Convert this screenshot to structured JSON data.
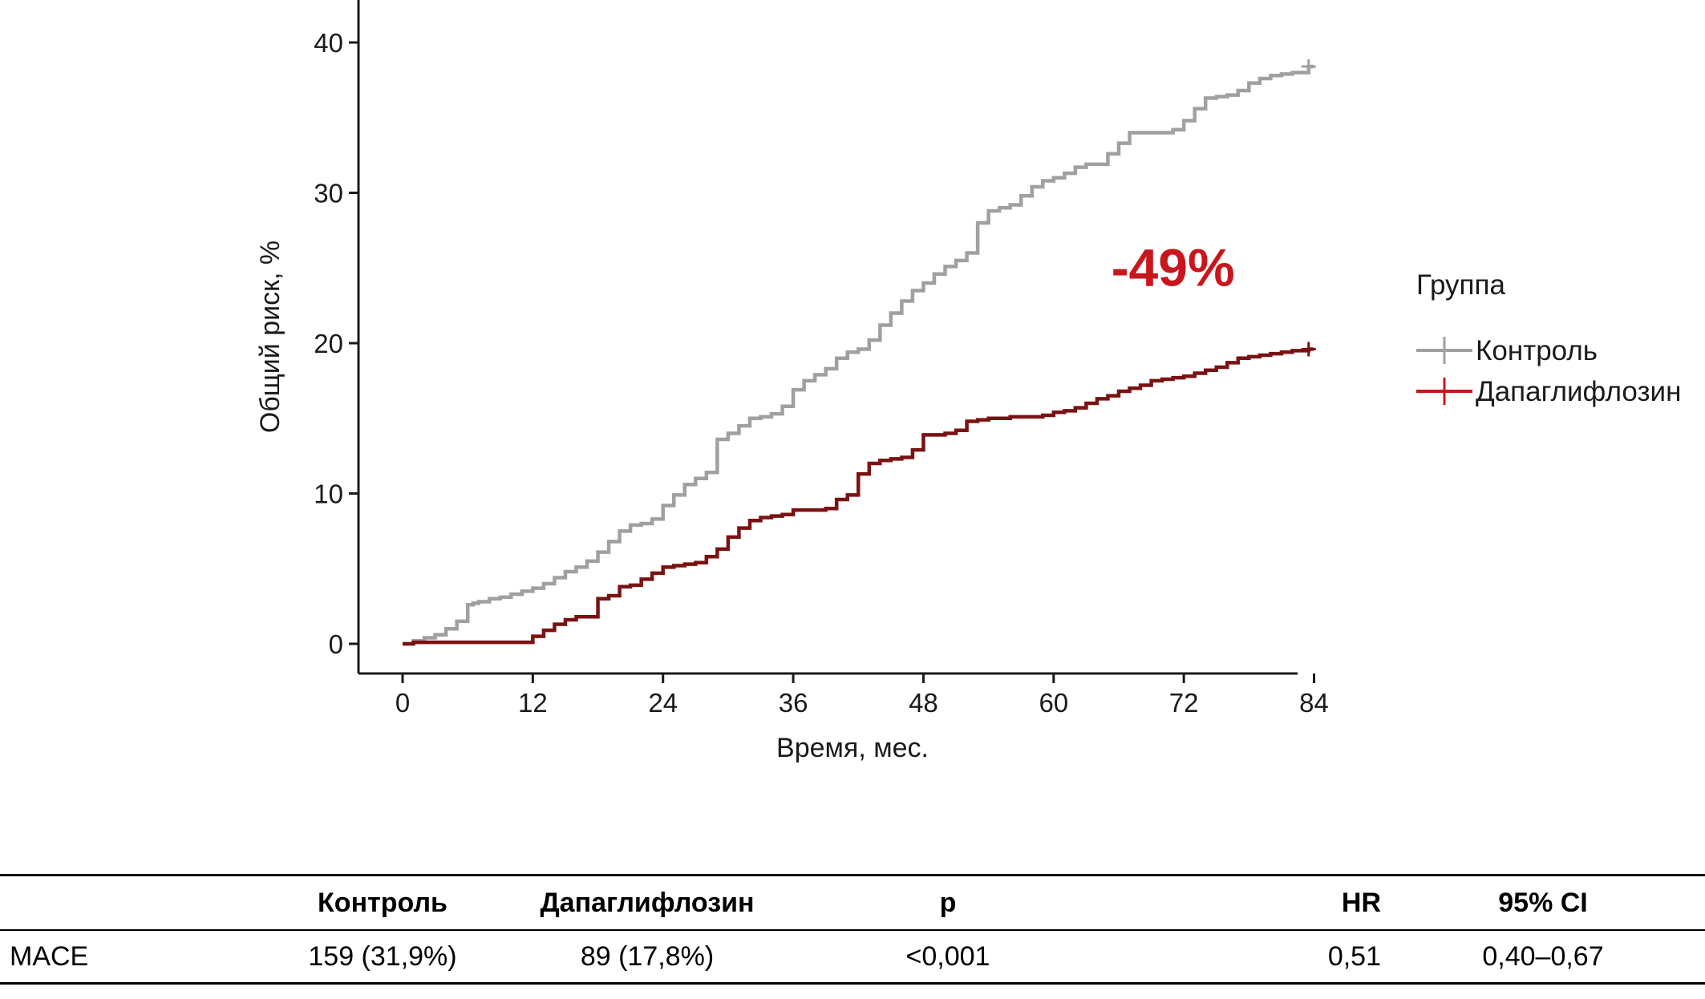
{
  "chart_data": {
    "type": "line",
    "step": true,
    "xlabel": "Время, мес.",
    "ylabel": "Общий риск, %",
    "xlim": [
      -5,
      93
    ],
    "ylim": [
      -2,
      42
    ],
    "xticks": [
      0,
      12,
      24,
      36,
      48,
      60,
      72,
      84
    ],
    "yticks": [
      0,
      10,
      20,
      30,
      40
    ],
    "grid": false,
    "legend": {
      "title": "Группа",
      "position": "right"
    },
    "annotation": {
      "text": "-49%",
      "x": 71,
      "y": 25,
      "color": "#c8161d"
    },
    "series": [
      {
        "name": "Контроль",
        "color": "#a0a0a0",
        "censor_mark_at_end": true,
        "x": [
          0,
          1,
          2,
          3,
          4,
          5,
          6,
          6.5,
          7,
          8,
          9,
          10,
          11,
          12,
          13,
          14,
          15,
          16,
          17,
          18,
          19,
          20,
          21,
          22,
          23,
          24,
          25,
          26,
          27,
          28,
          29,
          30,
          31,
          32,
          33,
          34,
          35,
          36,
          37,
          38,
          39,
          40,
          41,
          42,
          43,
          44,
          45,
          46,
          47,
          48,
          49,
          50,
          51,
          52,
          53,
          54,
          55,
          56,
          57,
          58,
          59,
          60,
          61,
          62,
          63,
          64,
          65,
          66,
          67,
          68,
          69,
          70,
          71,
          72,
          73,
          74,
          75,
          76,
          77,
          78,
          79,
          80,
          81,
          82,
          83.5
        ],
        "y": [
          0,
          0.2,
          0.4,
          0.6,
          1.0,
          1.5,
          2.6,
          2.7,
          2.8,
          3.0,
          3.1,
          3.3,
          3.5,
          3.7,
          4.0,
          4.4,
          4.8,
          5.1,
          5.5,
          6.1,
          6.8,
          7.5,
          7.9,
          8.0,
          8.3,
          9.2,
          9.9,
          10.6,
          11.0,
          11.4,
          13.6,
          14.0,
          14.5,
          15.0,
          15.1,
          15.3,
          15.8,
          16.9,
          17.5,
          17.9,
          18.3,
          19.0,
          19.4,
          19.6,
          20.2,
          21.2,
          22.0,
          22.8,
          23.5,
          24.0,
          24.6,
          25.1,
          25.5,
          26.0,
          28.0,
          28.8,
          29.0,
          29.2,
          29.8,
          30.4,
          30.8,
          31.0,
          31.3,
          31.7,
          31.9,
          31.9,
          32.6,
          33.3,
          34.0,
          34.0,
          34.0,
          34.0,
          34.2,
          34.8,
          35.6,
          36.3,
          36.4,
          36.5,
          36.8,
          37.3,
          37.6,
          37.8,
          37.9,
          38.0,
          38.4
        ]
      },
      {
        "name": "Дапаглифлозин",
        "color": "#7a1212",
        "censor_mark_at_end": true,
        "x": [
          0,
          1,
          2,
          4,
          6,
          8,
          10,
          11,
          12,
          13,
          14,
          15,
          16,
          17,
          18,
          19,
          20,
          21,
          22,
          23,
          24,
          25,
          26,
          27,
          28,
          29,
          30,
          31,
          32,
          33,
          34,
          35,
          36,
          37,
          38,
          39,
          40,
          41,
          42,
          43,
          44,
          45,
          46,
          47,
          48,
          49,
          50,
          51,
          52,
          53,
          54,
          55,
          56,
          57,
          58,
          59,
          60,
          61,
          62,
          63,
          64,
          65,
          66,
          67,
          68,
          69,
          70,
          71,
          72,
          73,
          74,
          75,
          76,
          77,
          78,
          79,
          80,
          81,
          82,
          83.5
        ],
        "y": [
          0,
          0.1,
          0.1,
          0.1,
          0.1,
          0.1,
          0.1,
          0.1,
          0.5,
          0.9,
          1.3,
          1.6,
          1.8,
          1.8,
          3.0,
          3.2,
          3.8,
          3.9,
          4.3,
          4.7,
          5.1,
          5.2,
          5.3,
          5.4,
          5.8,
          6.3,
          7.1,
          7.7,
          8.2,
          8.4,
          8.5,
          8.6,
          8.9,
          8.9,
          8.9,
          9.0,
          9.6,
          9.9,
          11.3,
          12.0,
          12.2,
          12.3,
          12.4,
          12.9,
          13.9,
          13.9,
          14.0,
          14.2,
          14.8,
          14.9,
          15.0,
          15.0,
          15.1,
          15.1,
          15.1,
          15.2,
          15.4,
          15.5,
          15.7,
          16.0,
          16.3,
          16.5,
          16.8,
          17.0,
          17.2,
          17.5,
          17.6,
          17.7,
          17.8,
          18.0,
          18.2,
          18.4,
          18.7,
          19.0,
          19.1,
          19.2,
          19.3,
          19.4,
          19.5,
          19.6
        ]
      }
    ]
  },
  "table": {
    "headers": [
      "",
      "Контроль",
      "Дапаглифлозин",
      "p",
      "HR",
      "95% CI"
    ],
    "rows": [
      [
        "MACE",
        "159 (31,9%)",
        "89 (17,8%)",
        "<0,001",
        "0,51",
        "0,40–0,67"
      ]
    ]
  }
}
